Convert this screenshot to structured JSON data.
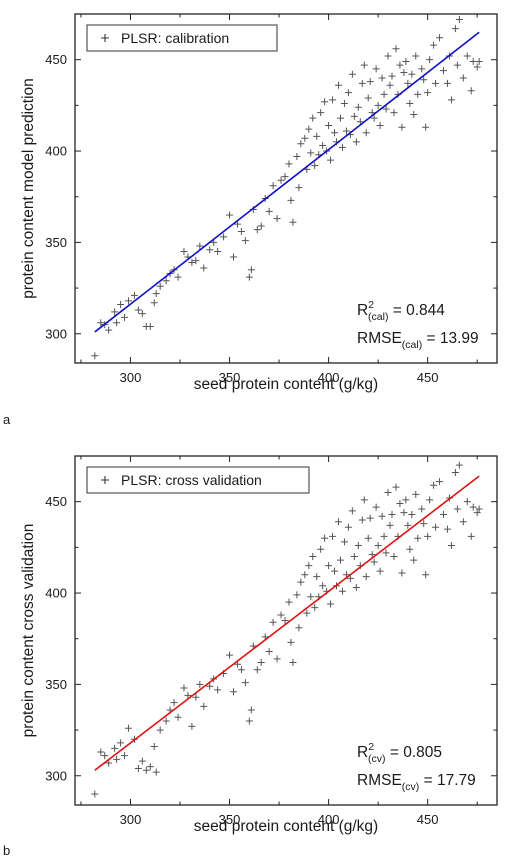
{
  "chart_data": [
    {
      "type": "scatter",
      "panel_label": "a",
      "legend": {
        "marker": "+",
        "label": "PLSR: calibration",
        "position": "top-left"
      },
      "xlabel": "seed protein content (g/kg)",
      "ylabel": "protein content model prediction",
      "xlim": [
        272,
        485
      ],
      "ylim": [
        284,
        475
      ],
      "xticks": [
        300,
        350,
        400,
        450
      ],
      "yticks": [
        300,
        350,
        400,
        450
      ],
      "grid": false,
      "regression_line": {
        "color": "#1010c8",
        "from": [
          282,
          301
        ],
        "to": [
          476,
          465
        ]
      },
      "stats": {
        "r2": {
          "symbol": "R",
          "sup": "2",
          "sub": "(cal)",
          "value": "= 0.844"
        },
        "rmse": {
          "symbol": "RMSE",
          "sub": "(cal)",
          "value": "= 13.99"
        }
      },
      "point_summary": {
        "marker": "+",
        "color": "#555555",
        "x_range": [
          282,
          476
        ],
        "y_range": [
          288,
          472
        ],
        "slope": 0.844,
        "residual_sd": 13.99
      },
      "points": [
        [
          282,
          288
        ],
        [
          285,
          306
        ],
        [
          287,
          305
        ],
        [
          289,
          302
        ],
        [
          292,
          312
        ],
        [
          293,
          306
        ],
        [
          295,
          316
        ],
        [
          297,
          309
        ],
        [
          299,
          318
        ],
        [
          302,
          321
        ],
        [
          304,
          313
        ],
        [
          306,
          311
        ],
        [
          308,
          304
        ],
        [
          310,
          304
        ],
        [
          312,
          317
        ],
        [
          313,
          322
        ],
        [
          315,
          326
        ],
        [
          318,
          329
        ],
        [
          320,
          333
        ],
        [
          322,
          335
        ],
        [
          324,
          331
        ],
        [
          327,
          345
        ],
        [
          329,
          342
        ],
        [
          331,
          339
        ],
        [
          333,
          340
        ],
        [
          335,
          348
        ],
        [
          337,
          336
        ],
        [
          340,
          346
        ],
        [
          342,
          350
        ],
        [
          344,
          345
        ],
        [
          347,
          353
        ],
        [
          350,
          365
        ],
        [
          352,
          342
        ],
        [
          354,
          360
        ],
        [
          356,
          356
        ],
        [
          358,
          351
        ],
        [
          360,
          331
        ],
        [
          361,
          335
        ],
        [
          362,
          368
        ],
        [
          364,
          357
        ],
        [
          366,
          359
        ],
        [
          368,
          374
        ],
        [
          370,
          367
        ],
        [
          372,
          381
        ],
        [
          374,
          363
        ],
        [
          376,
          384
        ],
        [
          378,
          386
        ],
        [
          380,
          393
        ],
        [
          381,
          373
        ],
        [
          382,
          361
        ],
        [
          384,
          397
        ],
        [
          385,
          380
        ],
        [
          386,
          404
        ],
        [
          388,
          407
        ],
        [
          389,
          390
        ],
        [
          390,
          412
        ],
        [
          391,
          399
        ],
        [
          392,
          418
        ],
        [
          393,
          392
        ],
        [
          394,
          408
        ],
        [
          395,
          398
        ],
        [
          396,
          421
        ],
        [
          397,
          403
        ],
        [
          398,
          427
        ],
        [
          399,
          400
        ],
        [
          400,
          414
        ],
        [
          401,
          395
        ],
        [
          402,
          428
        ],
        [
          403,
          410
        ],
        [
          404,
          405
        ],
        [
          405,
          436
        ],
        [
          406,
          418
        ],
        [
          407,
          402
        ],
        [
          408,
          426
        ],
        [
          409,
          411
        ],
        [
          410,
          432
        ],
        [
          411,
          409
        ],
        [
          412,
          442
        ],
        [
          413,
          419
        ],
        [
          414,
          405
        ],
        [
          415,
          424
        ],
        [
          416,
          416
        ],
        [
          417,
          437
        ],
        [
          418,
          447
        ],
        [
          419,
          410
        ],
        [
          420,
          429
        ],
        [
          421,
          438
        ],
        [
          422,
          421
        ],
        [
          423,
          418
        ],
        [
          424,
          445
        ],
        [
          425,
          425
        ],
        [
          426,
          414
        ],
        [
          427,
          440
        ],
        [
          428,
          431
        ],
        [
          429,
          423
        ],
        [
          430,
          452
        ],
        [
          431,
          436
        ],
        [
          432,
          441
        ],
        [
          433,
          421
        ],
        [
          434,
          456
        ],
        [
          435,
          431
        ],
        [
          436,
          447
        ],
        [
          437,
          413
        ],
        [
          438,
          443
        ],
        [
          439,
          449
        ],
        [
          440,
          437
        ],
        [
          441,
          426
        ],
        [
          442,
          442
        ],
        [
          443,
          420
        ],
        [
          444,
          452
        ],
        [
          445,
          431
        ],
        [
          447,
          445
        ],
        [
          448,
          439
        ],
        [
          449,
          413
        ],
        [
          450,
          432
        ],
        [
          451,
          450
        ],
        [
          453,
          458
        ],
        [
          454,
          437
        ],
        [
          456,
          462
        ],
        [
          458,
          444
        ],
        [
          460,
          437
        ],
        [
          461,
          452
        ],
        [
          462,
          428
        ],
        [
          464,
          467
        ],
        [
          465,
          447
        ],
        [
          466,
          472
        ],
        [
          468,
          440
        ],
        [
          470,
          452
        ],
        [
          472,
          433
        ],
        [
          473,
          449
        ],
        [
          475,
          446
        ],
        [
          476,
          449
        ]
      ]
    },
    {
      "type": "scatter",
      "panel_label": "b",
      "legend": {
        "marker": "+",
        "label": "PLSR: cross validation",
        "position": "top-left"
      },
      "xlabel": "seed protein content (g/kg)",
      "ylabel": "protein content cross validation",
      "xlim": [
        272,
        485
      ],
      "ylim": [
        284,
        475
      ],
      "xticks": [
        300,
        350,
        400,
        450
      ],
      "yticks": [
        300,
        350,
        400,
        450
      ],
      "grid": false,
      "regression_line": {
        "color": "#e01010",
        "from": [
          282,
          303
        ],
        "to": [
          476,
          464
        ]
      },
      "stats": {
        "r2": {
          "symbol": "R",
          "sup": "2",
          "sub": "(cv)",
          "value": "= 0.805"
        },
        "rmse": {
          "symbol": "RMSE",
          "sub": "(cv)",
          "value": "= 17.79"
        }
      },
      "point_summary": {
        "marker": "+",
        "color": "#555555",
        "x_range": [
          282,
          476
        ],
        "y_range": [
          290,
          470
        ],
        "slope": 0.805,
        "residual_sd": 17.79
      },
      "points": [
        [
          282,
          290
        ],
        [
          285,
          313
        ],
        [
          287,
          311
        ],
        [
          289,
          307
        ],
        [
          292,
          315
        ],
        [
          293,
          309
        ],
        [
          295,
          318
        ],
        [
          297,
          311
        ],
        [
          299,
          326
        ],
        [
          302,
          320
        ],
        [
          304,
          304
        ],
        [
          306,
          308
        ],
        [
          308,
          303
        ],
        [
          310,
          305
        ],
        [
          312,
          316
        ],
        [
          313,
          302
        ],
        [
          315,
          325
        ],
        [
          318,
          330
        ],
        [
          320,
          336
        ],
        [
          322,
          340
        ],
        [
          324,
          332
        ],
        [
          327,
          348
        ],
        [
          329,
          344
        ],
        [
          331,
          327
        ],
        [
          333,
          343
        ],
        [
          335,
          350
        ],
        [
          337,
          338
        ],
        [
          340,
          349
        ],
        [
          342,
          353
        ],
        [
          344,
          347
        ],
        [
          347,
          356
        ],
        [
          350,
          366
        ],
        [
          352,
          346
        ],
        [
          354,
          361
        ],
        [
          356,
          358
        ],
        [
          358,
          351
        ],
        [
          360,
          330
        ],
        [
          361,
          336
        ],
        [
          362,
          371
        ],
        [
          364,
          358
        ],
        [
          366,
          362
        ],
        [
          368,
          376
        ],
        [
          370,
          368
        ],
        [
          372,
          384
        ],
        [
          374,
          364
        ],
        [
          376,
          388
        ],
        [
          378,
          385
        ],
        [
          380,
          395
        ],
        [
          381,
          373
        ],
        [
          382,
          362
        ],
        [
          384,
          399
        ],
        [
          385,
          381
        ],
        [
          386,
          406
        ],
        [
          388,
          410
        ],
        [
          389,
          389
        ],
        [
          390,
          415
        ],
        [
          391,
          398
        ],
        [
          392,
          420
        ],
        [
          393,
          392
        ],
        [
          394,
          409
        ],
        [
          395,
          398
        ],
        [
          396,
          424
        ],
        [
          397,
          404
        ],
        [
          398,
          430
        ],
        [
          399,
          401
        ],
        [
          400,
          415
        ],
        [
          401,
          394
        ],
        [
          402,
          431
        ],
        [
          403,
          412
        ],
        [
          404,
          404
        ],
        [
          405,
          439
        ],
        [
          406,
          418
        ],
        [
          407,
          401
        ],
        [
          408,
          428
        ],
        [
          409,
          410
        ],
        [
          410,
          436
        ],
        [
          411,
          408
        ],
        [
          412,
          445
        ],
        [
          413,
          420
        ],
        [
          414,
          403
        ],
        [
          415,
          426
        ],
        [
          416,
          415
        ],
        [
          417,
          440
        ],
        [
          418,
          451
        ],
        [
          419,
          409
        ],
        [
          420,
          430
        ],
        [
          421,
          441
        ],
        [
          422,
          421
        ],
        [
          423,
          417
        ],
        [
          424,
          447
        ],
        [
          425,
          426
        ],
        [
          426,
          412
        ],
        [
          427,
          442
        ],
        [
          428,
          431
        ],
        [
          429,
          422
        ],
        [
          430,
          455
        ],
        [
          431,
          437
        ],
        [
          432,
          443
        ],
        [
          433,
          420
        ],
        [
          434,
          458
        ],
        [
          435,
          431
        ],
        [
          436,
          449
        ],
        [
          437,
          411
        ],
        [
          438,
          444
        ],
        [
          439,
          451
        ],
        [
          440,
          437
        ],
        [
          441,
          424
        ],
        [
          442,
          443
        ],
        [
          443,
          418
        ],
        [
          444,
          454
        ],
        [
          445,
          430
        ],
        [
          447,
          446
        ],
        [
          448,
          438
        ],
        [
          449,
          410
        ],
        [
          450,
          431
        ],
        [
          451,
          451
        ],
        [
          453,
          459
        ],
        [
          454,
          436
        ],
        [
          456,
          461
        ],
        [
          458,
          443
        ],
        [
          460,
          435
        ],
        [
          461,
          452
        ],
        [
          462,
          426
        ],
        [
          464,
          466
        ],
        [
          465,
          446
        ],
        [
          466,
          470
        ],
        [
          468,
          439
        ],
        [
          470,
          450
        ],
        [
          472,
          431
        ],
        [
          473,
          447
        ],
        [
          475,
          444
        ],
        [
          476,
          446
        ]
      ]
    }
  ]
}
